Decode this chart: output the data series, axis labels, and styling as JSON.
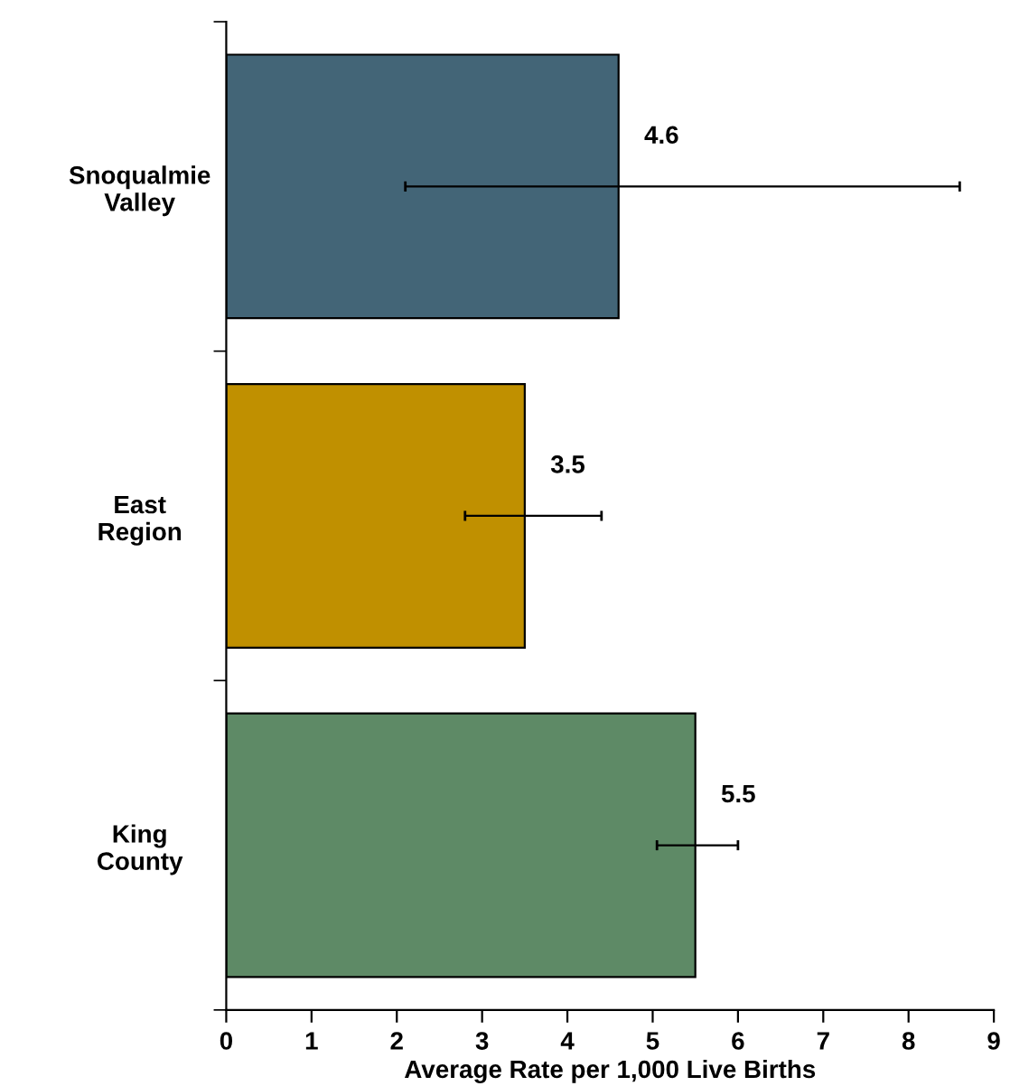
{
  "chart_data": {
    "type": "bar",
    "orientation": "horizontal",
    "xlabel": "Average Rate per 1,000 Live Births",
    "categories": [
      "Snoqualmie\nValley",
      "East\nRegion",
      "King\nCounty"
    ],
    "values": [
      4.6,
      3.5,
      5.5
    ],
    "colors": [
      "#436577",
      "#c09000",
      "#5e8a66"
    ],
    "errors": [
      [
        2.1,
        8.6
      ],
      [
        2.8,
        4.4
      ],
      [
        5.05,
        6.0
      ]
    ],
    "data_labels": true,
    "xlim": [
      0,
      9
    ],
    "xticks": [
      0,
      1,
      2,
      3,
      4,
      5,
      6,
      7,
      8,
      9
    ],
    "grid": false,
    "legend": false
  }
}
